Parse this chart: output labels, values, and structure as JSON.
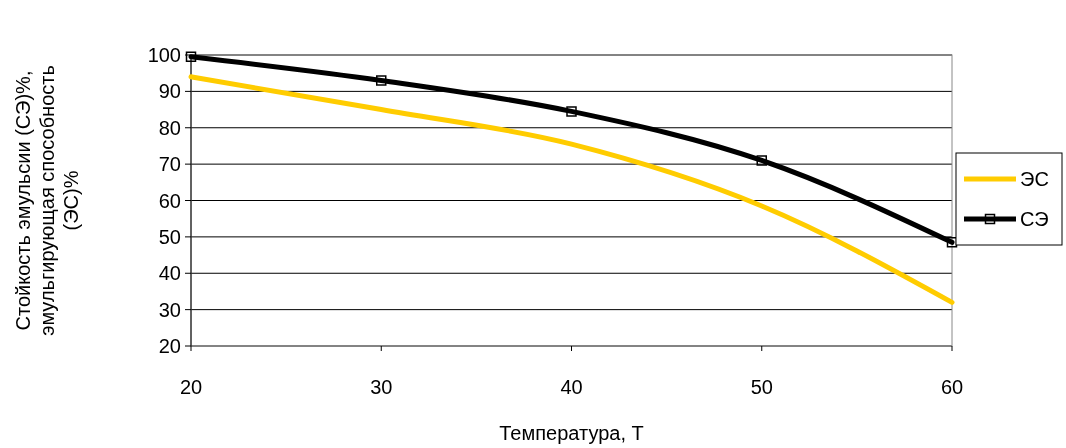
{
  "chart_data": {
    "type": "line",
    "xlabel": "Температура, T",
    "ylabel": "Стойкость эмульсии (СЭ)%, эмульгирующая способность (ЭС)%",
    "x": [
      20,
      30,
      40,
      50,
      60
    ],
    "series": [
      {
        "name": "ЭС",
        "color": "#ffcc00",
        "marker": "none",
        "values": [
          94,
          85,
          75.5,
          58.5,
          32
        ]
      },
      {
        "name": "СЭ",
        "color": "#000000",
        "marker": "square",
        "values": [
          99.5,
          93,
          84.5,
          71,
          48.5
        ]
      }
    ],
    "xlim": [
      20,
      60
    ],
    "xticks": [
      20,
      30,
      40,
      50,
      60
    ],
    "ylim": [
      20,
      100
    ],
    "yticks": [
      20,
      30,
      40,
      50,
      60,
      70,
      80,
      90,
      100
    ],
    "grid": "y",
    "legend": "right"
  }
}
